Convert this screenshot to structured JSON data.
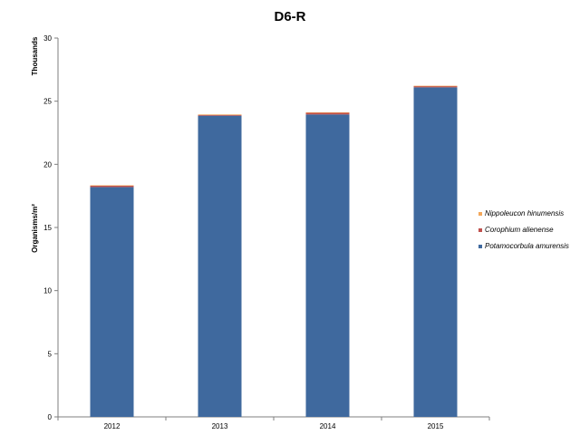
{
  "chart_data": {
    "type": "bar",
    "stacked": true,
    "title": "D6-R",
    "units_label": "Thousands",
    "ylabel": "Organisms/m²",
    "xlabel": "",
    "categories": [
      "2012",
      "2013",
      "2014",
      "2015"
    ],
    "ylim": [
      0,
      30
    ],
    "yticks": [
      0,
      5,
      10,
      15,
      20,
      25,
      30
    ],
    "grid": false,
    "legend_position": "right",
    "series": [
      {
        "name": "Potamocorbula  amurensis",
        "color": "#3f699e",
        "values": [
          18.2,
          23.85,
          23.95,
          26.1
        ]
      },
      {
        "name": "Corophium  alienense",
        "color": "#c0504d",
        "values": [
          0.12,
          0.05,
          0.15,
          0.1
        ]
      },
      {
        "name": "Nippoleucon  hinumensis",
        "color": "#f3a75b",
        "values": [
          0.02,
          0.05,
          0.02,
          0.02
        ]
      }
    ]
  }
}
